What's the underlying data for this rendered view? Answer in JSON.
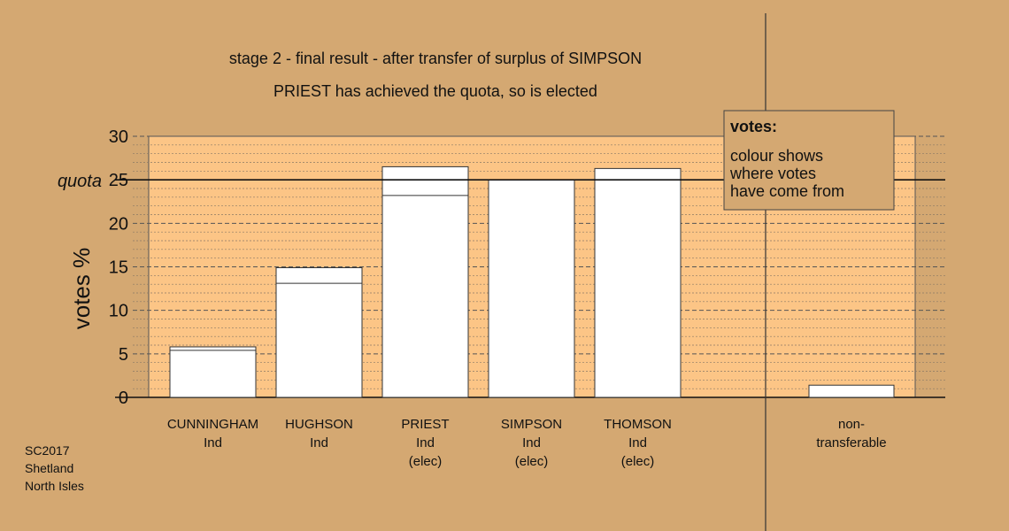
{
  "chart_data": {
    "type": "bar",
    "title": "stage 2 - final result - after transfer of surplus of SIMPSON",
    "subtitle": "PRIEST has achieved the quota, so is elected",
    "ylabel": "votes %",
    "ylim": [
      0,
      30
    ],
    "yticks": [
      0,
      5,
      10,
      15,
      20,
      25,
      30
    ],
    "quota": 25,
    "quota_label": "quota",
    "grid": true,
    "categories": [
      {
        "name": "CUNNINGHAM",
        "party": "Ind",
        "status": ""
      },
      {
        "name": "HUGHSON",
        "party": "Ind",
        "status": ""
      },
      {
        "name": "PRIEST",
        "party": "Ind",
        "status": "(elec)"
      },
      {
        "name": "SIMPSON",
        "party": "Ind",
        "status": "(elec)"
      },
      {
        "name": "THOMSON",
        "party": "Ind",
        "status": "(elec)"
      }
    ],
    "series": [
      {
        "values": [
          5.4,
          13.1,
          23.2,
          25.0,
          26.3
        ]
      },
      {
        "values": [
          0.4,
          1.8,
          3.3,
          0.0,
          0.0
        ]
      }
    ],
    "non_transferable": {
      "label_line1": "non-",
      "label_line2": "transferable",
      "value": 1.4
    },
    "legend": {
      "position": "top-right",
      "title": "votes:",
      "lines": [
        "colour shows",
        "where votes",
        "have come from"
      ]
    },
    "colors": {
      "background": "#d4a872",
      "plot_band": "#fcc586",
      "bar_fill": "#ffffff",
      "legend_bg": "#d4a872"
    }
  },
  "footer": {
    "lines": [
      "SC2017",
      "Shetland",
      "North Isles"
    ]
  }
}
